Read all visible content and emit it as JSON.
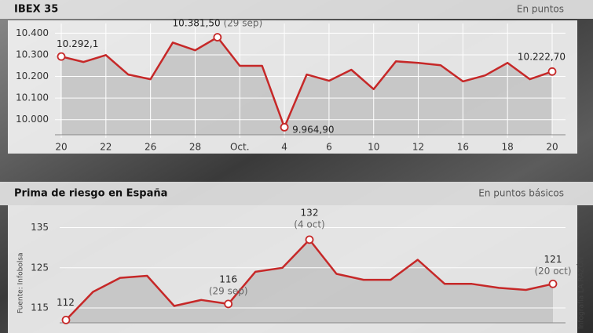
{
  "chart_data": [
    {
      "type": "line",
      "title": "IBEX 35",
      "subtitle": "En puntos",
      "categories": [
        "20",
        null,
        "22",
        null,
        "26",
        null,
        "28",
        null,
        "Oct.",
        null,
        "4",
        null,
        "6",
        null,
        "10",
        null,
        "12",
        null,
        "16",
        null,
        "18",
        null,
        "20"
      ],
      "values": [
        10292.1,
        10267,
        10299,
        10209,
        10187,
        10357,
        10321,
        10381.5,
        10249,
        10249,
        9964.9,
        10209,
        10180,
        10231,
        10141,
        10270,
        10263,
        10252,
        10177,
        10205,
        10263,
        10187,
        10222.7
      ],
      "value_labels": [
        "10.292,1",
        null,
        null,
        null,
        null,
        null,
        null,
        "10.381,50",
        null,
        null,
        "9.964,90",
        null,
        null,
        null,
        null,
        null,
        null,
        null,
        null,
        null,
        null,
        null,
        "10.222,70"
      ],
      "value_notes": [
        null,
        null,
        null,
        null,
        null,
        null,
        null,
        "(29 sep)",
        null,
        null,
        null,
        null,
        null,
        null,
        null,
        null,
        null,
        null,
        null,
        null,
        null,
        null,
        null
      ],
      "color": "#c62828",
      "ylim": [
        9930,
        10445
      ],
      "yticks": [
        {
          "value": 10000,
          "label": "10.000"
        },
        {
          "value": 10100,
          "label": "10.100"
        },
        {
          "value": 10200,
          "label": "10.200"
        },
        {
          "value": 10300,
          "label": "10.300"
        },
        {
          "value": 10400,
          "label": "10.400"
        }
      ],
      "grid": true
    },
    {
      "type": "line",
      "title": "Prima de riesgo en España",
      "subtitle": "En puntos básicos",
      "categories": [
        null,
        null,
        null,
        null,
        null,
        null,
        null,
        null,
        null,
        null,
        null,
        null,
        null,
        null,
        null,
        null,
        null,
        null,
        null
      ],
      "values": [
        112,
        119,
        122.5,
        123,
        115.5,
        117,
        116,
        124,
        125,
        132,
        123.5,
        122,
        122,
        127,
        121,
        121,
        120,
        119.5,
        121
      ],
      "value_labels": [
        "112",
        null,
        null,
        null,
        null,
        null,
        "116",
        null,
        null,
        "132",
        null,
        null,
        null,
        null,
        null,
        null,
        null,
        null,
        "121"
      ],
      "value_notes": [
        null,
        null,
        null,
        null,
        null,
        null,
        "(29 sep)",
        null,
        null,
        "(4 oct)",
        null,
        null,
        null,
        null,
        null,
        null,
        null,
        null,
        "(20 oct)"
      ],
      "color": "#c62828",
      "ylim": [
        111.3,
        139
      ],
      "yticks": [
        115,
        125,
        135
      ],
      "grid": true
    }
  ],
  "source": "Fuente: Infobolsa",
  "credit": "Infografía LA RAZÓN"
}
